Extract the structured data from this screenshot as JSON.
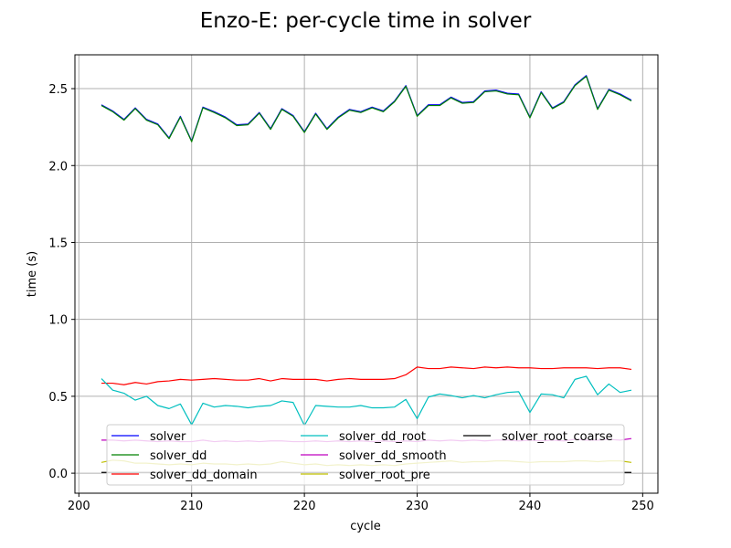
{
  "chart_data": {
    "type": "line",
    "title": "Enzo-E: per-cycle time in solver",
    "xlabel": "cycle",
    "ylabel": "time (s)",
    "xlim": [
      199.65,
      251.35
    ],
    "ylim": [
      -0.13,
      2.72
    ],
    "xticks": [
      200,
      210,
      220,
      230,
      240,
      250
    ],
    "yticks": [
      0.0,
      0.5,
      1.0,
      1.5,
      2.0,
      2.5
    ],
    "ytick_labels": [
      "0.0",
      "0.5",
      "1.0",
      "1.5",
      "2.0",
      "2.5"
    ],
    "grid": true,
    "legend_position": "lower-center",
    "legend_columns": 3,
    "x": [
      202,
      203,
      204,
      205,
      206,
      207,
      208,
      209,
      210,
      211,
      212,
      213,
      214,
      215,
      216,
      217,
      218,
      219,
      220,
      221,
      222,
      223,
      224,
      225,
      226,
      227,
      228,
      229,
      230,
      231,
      232,
      233,
      234,
      235,
      236,
      237,
      238,
      239,
      240,
      241,
      242,
      243,
      244,
      245,
      246,
      247,
      248,
      249
    ],
    "series": [
      {
        "name": "solver",
        "color": "#0000ff",
        "values": [
          2.395,
          2.355,
          2.3,
          2.375,
          2.3,
          2.27,
          2.18,
          2.32,
          2.16,
          2.38,
          2.35,
          2.315,
          2.265,
          2.27,
          2.345,
          2.24,
          2.37,
          2.325,
          2.22,
          2.34,
          2.24,
          2.315,
          2.365,
          2.35,
          2.38,
          2.355,
          2.42,
          2.52,
          2.325,
          2.395,
          2.395,
          2.445,
          2.41,
          2.415,
          2.485,
          2.49,
          2.47,
          2.465,
          2.315,
          2.48,
          2.375,
          2.415,
          2.525,
          2.585,
          2.37,
          2.495,
          2.465,
          2.425
        ]
      },
      {
        "name": "solver_dd",
        "color": "#008000",
        "values": [
          2.39,
          2.35,
          2.295,
          2.37,
          2.295,
          2.265,
          2.175,
          2.315,
          2.155,
          2.375,
          2.345,
          2.31,
          2.26,
          2.265,
          2.34,
          2.235,
          2.365,
          2.32,
          2.215,
          2.335,
          2.235,
          2.31,
          2.36,
          2.345,
          2.375,
          2.35,
          2.415,
          2.515,
          2.32,
          2.39,
          2.39,
          2.44,
          2.405,
          2.41,
          2.48,
          2.485,
          2.465,
          2.46,
          2.31,
          2.475,
          2.37,
          2.41,
          2.52,
          2.58,
          2.365,
          2.49,
          2.46,
          2.42
        ]
      },
      {
        "name": "solver_dd_domain",
        "color": "#ff0000",
        "values": [
          0.585,
          0.585,
          0.575,
          0.59,
          0.58,
          0.595,
          0.6,
          0.61,
          0.605,
          0.61,
          0.615,
          0.61,
          0.605,
          0.605,
          0.615,
          0.6,
          0.615,
          0.61,
          0.61,
          0.61,
          0.6,
          0.61,
          0.615,
          0.61,
          0.61,
          0.61,
          0.615,
          0.64,
          0.69,
          0.68,
          0.68,
          0.69,
          0.685,
          0.68,
          0.69,
          0.685,
          0.69,
          0.685,
          0.685,
          0.68,
          0.68,
          0.685,
          0.685,
          0.685,
          0.68,
          0.685,
          0.685,
          0.675
        ]
      },
      {
        "name": "solver_dd_root",
        "color": "#00bfbf",
        "values": [
          0.615,
          0.54,
          0.52,
          0.475,
          0.5,
          0.44,
          0.42,
          0.45,
          0.315,
          0.455,
          0.43,
          0.44,
          0.435,
          0.425,
          0.435,
          0.44,
          0.47,
          0.46,
          0.31,
          0.44,
          0.435,
          0.43,
          0.43,
          0.44,
          0.425,
          0.425,
          0.43,
          0.48,
          0.355,
          0.495,
          0.515,
          0.505,
          0.49,
          0.505,
          0.49,
          0.51,
          0.525,
          0.53,
          0.395,
          0.515,
          0.51,
          0.49,
          0.61,
          0.63,
          0.51,
          0.58,
          0.525,
          0.54
        ]
      },
      {
        "name": "solver_dd_smooth",
        "color": "#bf00bf",
        "values": [
          0.215,
          0.215,
          0.21,
          0.215,
          0.21,
          0.205,
          0.21,
          0.205,
          0.205,
          0.215,
          0.205,
          0.21,
          0.205,
          0.21,
          0.205,
          0.21,
          0.21,
          0.205,
          0.205,
          0.21,
          0.205,
          0.21,
          0.205,
          0.21,
          0.205,
          0.21,
          0.205,
          0.21,
          0.205,
          0.215,
          0.21,
          0.215,
          0.21,
          0.215,
          0.21,
          0.215,
          0.215,
          0.21,
          0.215,
          0.21,
          0.215,
          0.21,
          0.22,
          0.215,
          0.215,
          0.22,
          0.215,
          0.225
        ]
      },
      {
        "name": "solver_root_pre",
        "color": "#bfbf00",
        "values": [
          0.07,
          0.085,
          0.08,
          0.065,
          0.065,
          0.06,
          0.055,
          0.06,
          0.055,
          0.065,
          0.06,
          0.06,
          0.055,
          0.06,
          0.055,
          0.06,
          0.075,
          0.065,
          0.055,
          0.06,
          0.05,
          0.055,
          0.05,
          0.055,
          0.05,
          0.055,
          0.05,
          0.06,
          0.065,
          0.07,
          0.075,
          0.08,
          0.07,
          0.075,
          0.075,
          0.08,
          0.08,
          0.075,
          0.07,
          0.075,
          0.075,
          0.075,
          0.08,
          0.08,
          0.075,
          0.08,
          0.08,
          0.07
        ]
      },
      {
        "name": "solver_root_coarse",
        "color": "#000000",
        "values": [
          0.005,
          0.005,
          0.005,
          0.005,
          0.005,
          0.005,
          0.005,
          0.005,
          0.005,
          0.005,
          0.005,
          0.005,
          0.005,
          0.005,
          0.005,
          0.005,
          0.005,
          0.005,
          0.005,
          0.005,
          0.005,
          0.005,
          0.005,
          0.005,
          0.005,
          0.005,
          0.005,
          0.005,
          0.005,
          0.005,
          0.005,
          0.005,
          0.005,
          0.005,
          0.005,
          0.005,
          0.005,
          0.005,
          0.005,
          0.005,
          0.005,
          0.005,
          0.005,
          0.005,
          0.005,
          0.005,
          0.005,
          0.005
        ]
      }
    ]
  }
}
